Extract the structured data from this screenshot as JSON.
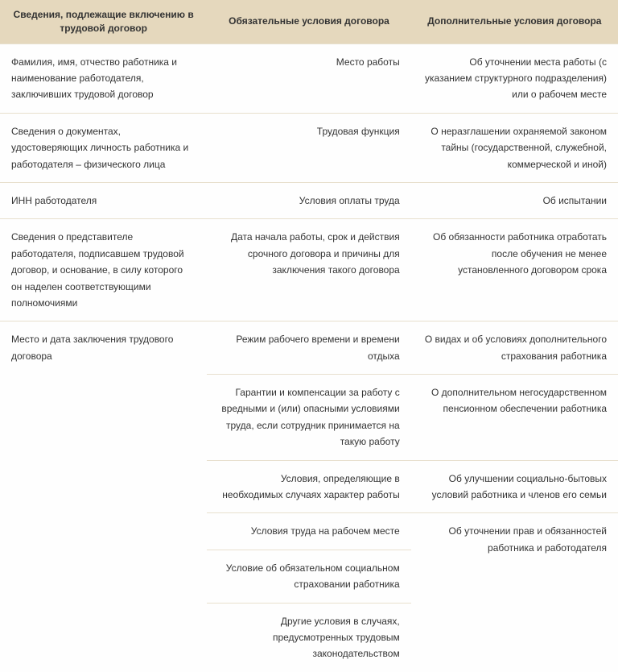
{
  "headers": {
    "col1": "Сведения, подлежащие включению в трудовой договор",
    "col2": "Обязательные условия договора",
    "col3": "Дополнительные условия договора"
  },
  "rows": [
    {
      "c1": "Фамилия, имя, отчество работника и наименование работодателя, заключивших трудовой договор",
      "c2": "Место работы",
      "c3": "Об уточнении места работы (с указанием структурного подразделения) или о рабочем месте"
    },
    {
      "c1": "Сведения о документах, удостоверяющих личность работника и работодателя – физического лица",
      "c2": "Трудовая функция",
      "c3": "О неразглашении охраняемой законом тайны (государственной, служебной, коммерческой и иной)"
    },
    {
      "c1": "ИНН работодателя",
      "c2": "Условия оплаты труда",
      "c3": "Об испытании"
    },
    {
      "c1": "Сведения о представителе работодателя, подписавшем трудовой договор, и основание, в силу которого он наделен соответствующими полномочиями",
      "c2": "Дата начала работы, срок и действия срочного договора и причины для заключения такого договора",
      "c3": "Об обязанности работника отработать после обучения не менее установленного договором срока"
    },
    {
      "c1": "Место и дата заключения трудового договора",
      "c2": "Режим рабочего времени и времени отдыха",
      "c3": "О видах и об условиях дополнительного страхования работника"
    },
    {
      "c2": "Гарантии и компенсации за работу с вредными и (или) опасными условиями труда, если сотрудник принимается на такую работу",
      "c3": "О дополнительном негосударственном пенсионном обеспечении работника"
    },
    {
      "c2": "Условия, определяющие в необходимых случаях характер работы",
      "c3": "Об улучшении социально-бытовых условий работника и членов его семьи"
    },
    {
      "c2": "Условия труда на рабочем месте",
      "c3": "Об уточнении прав и обязанностей работника и работодателя"
    },
    {
      "c2": "Условие об обязательном социальном страховании работника"
    },
    {
      "c2": "Другие условия в случаях, предусмотренных трудовым законодательством"
    }
  ],
  "style": {
    "header_bg": "#e5d8bd",
    "border_color": "#e8e0ce",
    "text_color": "#333333",
    "font_size": 12
  }
}
